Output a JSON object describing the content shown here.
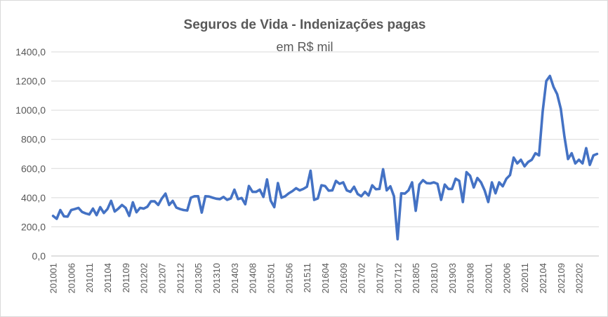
{
  "chart_data": {
    "type": "line",
    "title": "Seguros de Vida - Indenizações pagas",
    "subtitle": "em R$ mil",
    "xlabel": "",
    "ylabel": "",
    "ylim": [
      0,
      1400
    ],
    "yticks": [
      0,
      200,
      400,
      600,
      800,
      1000,
      1200,
      1400
    ],
    "ytick_labels": [
      "0,0",
      "200,0",
      "400,0",
      "600,0",
      "800,0",
      "1000,0",
      "1200,0",
      "1400,0"
    ],
    "xtick_labels": [
      "201001",
      "201006",
      "201011",
      "201104",
      "201109",
      "201202",
      "201207",
      "201212",
      "201305",
      "201310",
      "201403",
      "201408",
      "201501",
      "201506",
      "201511",
      "201604",
      "201609",
      "201702",
      "201707",
      "201712",
      "201805",
      "201810",
      "201903",
      "201908",
      "202001",
      "202006",
      "202011",
      "202104",
      "202109",
      "202202"
    ],
    "grid": true,
    "legend": "none",
    "x_start": "201001",
    "x_end": "202206",
    "series": [
      {
        "color": "#4472C4",
        "values": [
          275,
          255,
          315,
          272,
          270,
          315,
          322,
          330,
          302,
          292,
          285,
          325,
          280,
          335,
          295,
          322,
          378,
          305,
          325,
          350,
          330,
          275,
          368,
          300,
          330,
          325,
          338,
          375,
          375,
          350,
          395,
          428,
          350,
          378,
          332,
          322,
          315,
          312,
          400,
          410,
          410,
          298,
          410,
          408,
          400,
          393,
          390,
          405,
          385,
          395,
          455,
          390,
          398,
          355,
          480,
          440,
          440,
          455,
          405,
          525,
          380,
          335,
          500,
          400,
          410,
          430,
          445,
          465,
          450,
          460,
          475,
          585,
          385,
          395,
          485,
          480,
          448,
          450,
          515,
          495,
          505,
          450,
          440,
          475,
          425,
          410,
          440,
          415,
          485,
          458,
          460,
          595,
          450,
          478,
          410,
          115,
          430,
          428,
          450,
          505,
          310,
          490,
          520,
          500,
          498,
          505,
          495,
          385,
          490,
          460,
          460,
          530,
          515,
          370,
          575,
          550,
          470,
          535,
          505,
          450,
          370,
          505,
          430,
          505,
          478,
          530,
          555,
          675,
          635,
          660,
          615,
          645,
          660,
          705,
          690,
          990,
          1200,
          1235,
          1160,
          1110,
          1010,
          820,
          665,
          705,
          635,
          660,
          635,
          740,
          625,
          690,
          700
        ]
      }
    ]
  }
}
